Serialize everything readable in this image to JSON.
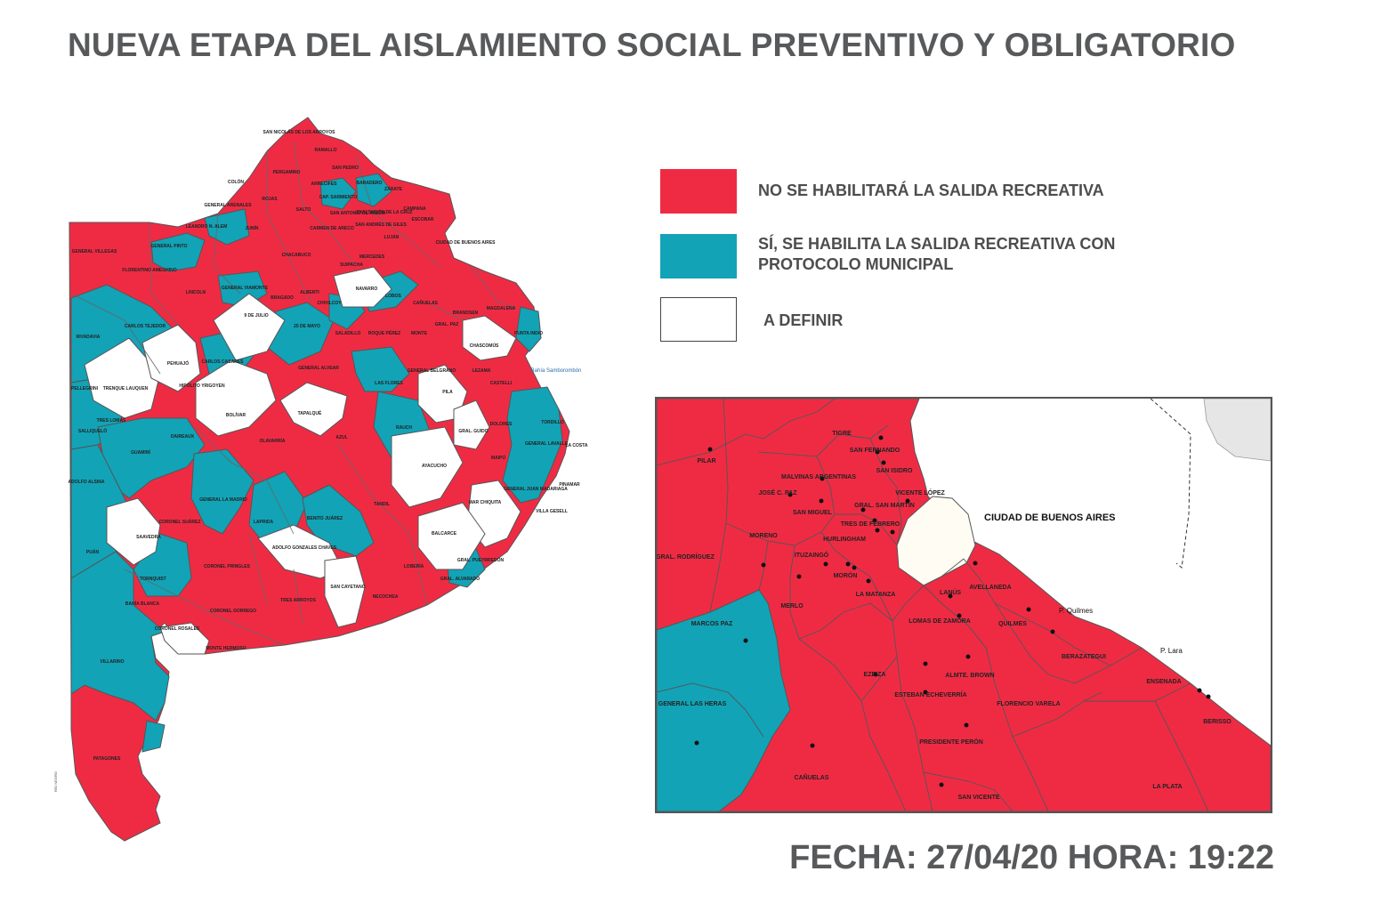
{
  "title": "NUEVA ETAPA DEL AISLAMIENTO SOCIAL PREVENTIVO Y OBLIGATORIO",
  "colors": {
    "red": "#ef2b44",
    "teal": "#12a3b6",
    "white": "#ffffff",
    "border": "#555555",
    "text": "#58595b"
  },
  "legend": [
    {
      "color": "#ef2b44",
      "label": "NO SE HABILITARÁ LA SALIDA RECREATIVA"
    },
    {
      "color": "#12a3b6",
      "label": "SÍ, SE HABILITA LA SALIDA RECREATIVA CON PROTOCOLO MUNICIPAL"
    },
    {
      "color": "#ffffff",
      "label": "A DEFINIR"
    }
  ],
  "province_map": {
    "labels": {
      "san_nicolas": "SAN NICOLÁS DE LOS ARROYOS",
      "ramallo": "RAMALLO",
      "colon": "COLÓN",
      "pergamino": "PERGAMINO",
      "san_pedro": "SAN PEDRO",
      "baradero": "BARADERO",
      "rojas": "ROJAS",
      "salto": "SALTO",
      "arrecifes": "ARRECIFES",
      "capitan_sarmiento": "CAP. SARMIENTO",
      "zarate": "ZÁRATE",
      "campana": "CAMPANA",
      "general_arenales": "GENERAL ARENALES",
      "san_antonio_de_areco": "SAN ANTONIO DE ARECO",
      "exaltacion": "EXALTACIÓN DE LA CRUZ",
      "san_andres_de_giles": "SAN ANDRÉS DE GILES",
      "escobar": "ESCOBAR",
      "junin": "JUNÍN",
      "carmen_de_areco": "CARMEN DE ARECO",
      "lujan": "LUJÁN",
      "leandro_alem": "LEANDRO N. ALEM",
      "general_villegas": "GENERAL VILLEGAS",
      "general_pinto": "GENERAL PINTO",
      "chacabuco": "CHACABUCO",
      "mercedes": "MERCEDES",
      "florentino_ameghino": "FLORENTINO AMEGHINO",
      "suipacha": "SUIPACHA",
      "ciudad": "CIUDAD DE BUENOS AIRES",
      "lincoln": "LINCOLN",
      "general_viamonte": "GENERAL VIAMONTE",
      "bragado": "BRAGADO",
      "alberti": "ALBERTI",
      "chivilcoy": "CHIVILCOY",
      "navarro": "NAVARRO",
      "lobos": "LOBOS",
      "canuelas": "CAÑUELAS",
      "brandsen": "BRANDSEN",
      "magdalena": "MAGDALENA",
      "rivadavia": "RIVADAVIA",
      "carlos_tejedor": "CARLOS TEJEDOR",
      "nueve_de_julio": "9 DE JULIO",
      "veinticinco_de_mayo": "25 DE MAYO",
      "roque_perez": "ROQUE PÉREZ",
      "saladillo": "SALADILLO",
      "monte": "MONTE",
      "gral_paz": "GRAL. PAZ",
      "punta_indio": "PUNTA INDIO",
      "chascomus": "CHASCOMÚS",
      "pehuajo": "PEHUAJÓ",
      "carlos_casares": "CARLOS CASARES",
      "trenque_lauquen": "TRENQUE LAUQUEN",
      "hipolito_yrigoyen": "HIPÓLITO YRIGOYEN",
      "general_alvear": "GENERAL ALVEAR",
      "las_flores": "LAS FLORES",
      "general_belgrano": "GENERAL BELGRANO",
      "lezama": "LEZAMA",
      "castelli": "CASTELLI",
      "pellegrini": "PELLEGRINI",
      "bolivar": "BOLÍVAR",
      "tapalque": "TAPALQUÉ",
      "pila": "PILA",
      "tres_lomas": "TRES LOMAS",
      "salliquelo": "SALLIQUELÓ",
      "daireaux": "DAIREAUX",
      "rauch": "RAUCH",
      "gral_guido": "GRAL. GUIDO",
      "dolores": "DOLORES",
      "tordillo": "TORDILLO",
      "la_costa": "LA COSTA",
      "general_lavalle": "GENERAL LAVALLE",
      "olavarria": "OLAVARRÍA",
      "azul": "AZUL",
      "guamini": "GUAMINÍ",
      "maipu": "MAIPÚ",
      "ayacucho": "AYACUCHO",
      "adolfo_alsina": "ADOLFO ALSINA",
      "general_madariaga": "GENERAL JUAN MADARIAGA",
      "pinamar": "PINAMAR",
      "villa_gesell": "VILLA GESELL",
      "general_la_madrid": "GENERAL LA MADRID",
      "coronel_suarez": "CORONEL SUÁREZ",
      "tandil": "TANDIL",
      "mar_chiquita": "MAR CHIQUITA",
      "saavedra": "SAAVEDRA",
      "laprida": "LAPRIDA",
      "benito_juarez": "BENITO JUÁREZ",
      "balcarce": "BALCARCE",
      "gral_pueyrredon": "GRAL. PUEYRREDÓN",
      "puan": "PUÁN",
      "coronel_pringles": "CORONEL PRINGLES",
      "adolfo_gonzales_chaves": "ADOLFO GONZALES CHAVES",
      "loberia": "LOBERÍA",
      "gral_alvarado": "GRAL. ALVARADO",
      "tornquist": "TORNQUIST",
      "san_cayetano": "SAN CAYETANO",
      "necochea": "NECOCHEA",
      "tres_arroyos": "TRES ARROYOS",
      "coronel_dorrego": "CORONEL DORREGO",
      "bahia_blanca": "BAHÍA BLANCA",
      "coronel_rosales": "CORONEL ROSALES",
      "monte_hermoso": "MONTE HERMOSO",
      "villarino": "VILLARINO",
      "patagones": "PATAGONES",
      "bahia_samborombon": "Bahía Samborombón",
      "rio_negro": "RÍO NEGRO"
    }
  },
  "amba_map": {
    "labels": {
      "pilar": "PILAR",
      "tigre": "TIGRE",
      "san_fernando": "SAN FERNANDO",
      "san_isidro": "SAN ISIDRO",
      "malvinas": "MALVINAS ARGENTINAS",
      "jose_c_paz": "JOSÉ C. PAZ",
      "san_miguel": "SAN MIGUEL",
      "vicente_lopez": "VICENTE LÓPEZ",
      "gral_san_martin": "GRAL. SAN MARTÍN",
      "tres_de_febrero": "TRES DE FEBRERO",
      "hurlingham": "HURLINGHAM",
      "ciudad": "CIUDAD DE BUENOS AIRES",
      "moreno": "MORENO",
      "gral_rodriguez": "GRAL. RODRÍGUEZ",
      "ituzaingo": "ITUZAINGÓ",
      "moron": "MORÓN",
      "la_matanza": "LA MATANZA",
      "merlo": "MERLO",
      "lanus": "LANÚS",
      "avellaneda": "AVELLANEDA",
      "p_quilmes": "P. Quilmes",
      "marcos_paz": "MARCOS PAZ",
      "lomas_de_zamora": "LOMAS DE ZAMORA",
      "quilmes": "QUILMES",
      "berazategui": "BERAZATEGUI",
      "p_lara": "P. Lara",
      "ezeiza": "EZEIZA",
      "almte_brown": "ALMTE. BROWN",
      "esteban_echeverria": "ESTEBAN ECHEVERRÍA",
      "florencio_varela": "FLORENCIO VARELA",
      "ensenada": "ENSENADA",
      "general_las_heras": "GENERAL LAS HERAS",
      "berisso": "BERISSO",
      "presidente_peron": "PRESIDENTE PERÓN",
      "canuelas": "CAÑUELAS",
      "san_vicente": "SAN VICENTE",
      "la_plata": "LA PLATA"
    }
  },
  "footer": {
    "date": "FECHA: 27/04/20 HORA: 19:22"
  }
}
